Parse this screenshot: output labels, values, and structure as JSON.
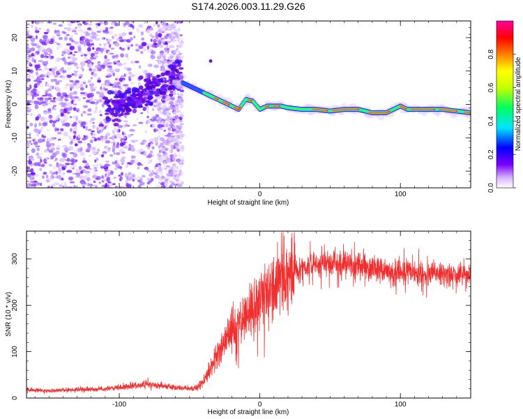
{
  "chart_data": [
    {
      "type": "heatmap",
      "title": "S174.2026.003.11.29.G26",
      "xlabel": "Height of straight line (km)",
      "ylabel": "Frequency (Hz)",
      "xlim": [
        -166,
        150
      ],
      "ylim": [
        -25,
        25
      ],
      "xticks": [
        -100,
        0,
        100
      ],
      "xtick_labels": [
        "-100",
        "0",
        "100"
      ],
      "yticks": [
        -20,
        -10,
        0,
        10,
        20
      ],
      "ytick_labels": [
        "-20",
        "-10",
        "0",
        "10",
        "20"
      ],
      "ridge": {
        "x": [
          -60,
          -55,
          -50,
          -45,
          -40,
          -35,
          -30,
          -25,
          -20,
          -15,
          -10,
          -5,
          0,
          5,
          10,
          15,
          20,
          30,
          40,
          50,
          60,
          70,
          80,
          90,
          95,
          100,
          105,
          110,
          120,
          130,
          140,
          150
        ],
        "frequency": [
          6,
          6.5,
          5.5,
          4.5,
          3.5,
          2.5,
          1.5,
          0.5,
          -0.5,
          -1.5,
          1.5,
          1,
          -1.5,
          -0.5,
          -0.5,
          -0.5,
          -1,
          -1.5,
          -1.5,
          -2,
          -1.5,
          -1.5,
          -2.5,
          -2.5,
          -1.5,
          -0.5,
          -1.5,
          -1.5,
          -1.5,
          -1.5,
          -2,
          -2.5
        ]
      },
      "colorbar": {
        "label": "Normalized spectral amplitude",
        "range": [
          0,
          1
        ],
        "ticks": [
          0,
          0.2,
          0.4,
          0.6,
          0.8
        ],
        "tick_labels": [
          "0.0",
          "0.2",
          "0.4",
          "0.6",
          "0.8"
        ],
        "colors": [
          "#ffffff",
          "#d8b4ff",
          "#7a00ff",
          "#0000ff",
          "#00e5ff",
          "#00ff60",
          "#c8ff00",
          "#ffff00",
          "#ff8000",
          "#ff0000",
          "#ff00a0"
        ]
      }
    },
    {
      "type": "line",
      "title": "",
      "xlabel": "Height of straight line (km)",
      "ylabel": "SNR (10 * v/v)",
      "xlim": [
        -166,
        150
      ],
      "ylim": [
        0,
        360
      ],
      "xticks": [
        -100,
        0,
        100
      ],
      "xtick_labels": [
        "-100",
        "0",
        "100"
      ],
      "yticks": [
        0,
        100,
        200,
        300
      ],
      "ytick_labels": [
        "0",
        "100",
        "200",
        "300"
      ],
      "color": "#f03030",
      "series": [
        {
          "name": "SNR",
          "x": [
            -166,
            -150,
            -140,
            -130,
            -120,
            -110,
            -100,
            -90,
            -80,
            -70,
            -60,
            -50,
            -45,
            -40,
            -35,
            -30,
            -25,
            -20,
            -15,
            -10,
            -5,
            0,
            5,
            10,
            15,
            20,
            25,
            30,
            35,
            40,
            50,
            60,
            70,
            80,
            90,
            100,
            110,
            120,
            130,
            140,
            150
          ],
          "values": [
            17,
            16,
            17,
            18,
            19,
            20,
            22,
            27,
            30,
            27,
            23,
            20,
            22,
            35,
            65,
            95,
            120,
            140,
            160,
            180,
            195,
            210,
            225,
            240,
            255,
            265,
            275,
            280,
            285,
            290,
            295,
            290,
            285,
            280,
            275,
            270,
            270,
            268,
            268,
            265,
            265
          ]
        }
      ]
    }
  ]
}
